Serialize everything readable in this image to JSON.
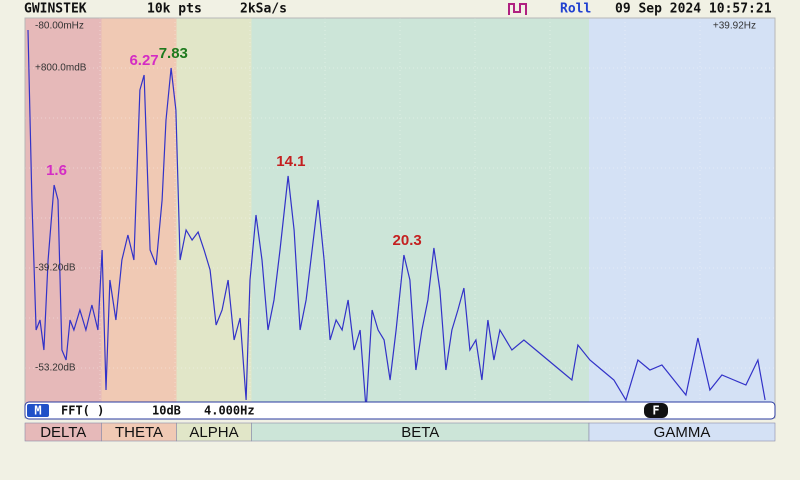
{
  "header": {
    "brand": "GWINSTEK",
    "points": "10k pts",
    "rate": "2kSa/s",
    "mode": "Roll",
    "datetime": "09 Sep 2024 10:57:21"
  },
  "scale": {
    "x_start": "-80.00mHz",
    "x_end": "+39.92Hz",
    "y_labels": [
      "+800.0mdB",
      "-39.20dB",
      "-53.20dB"
    ]
  },
  "xlim": [
    -0.08,
    39.92
  ],
  "ylim": [
    -69.2,
    10.8
  ],
  "bands": [
    {
      "label": "DELTA",
      "from": -0.08,
      "to": 4,
      "color": "#e6b9b9"
    },
    {
      "label": "THETA",
      "from": 4,
      "to": 8,
      "color": "#f0c9b4"
    },
    {
      "label": "ALPHA",
      "from": 8,
      "to": 12,
      "color": "#e1e6c8"
    },
    {
      "label": "BETA",
      "from": 12,
      "to": 30,
      "color": "#cce5d8"
    },
    {
      "label": "GAMMA",
      "from": 30,
      "to": 39.92,
      "color": "#d4e1f5"
    }
  ],
  "annotations": [
    {
      "value": 1.6,
      "color": "#d42cc4"
    },
    {
      "value": 6.27,
      "color": "#d42cc4"
    },
    {
      "value": 7.83,
      "color": "#1e7a1e"
    },
    {
      "value": 14.1,
      "color": "#c42020"
    },
    {
      "value": 20.3,
      "color": "#c42020"
    }
  ],
  "trace_color": "#3232c8",
  "trace": [
    [
      0.08,
      8.4
    ],
    [
      0.29,
      -25.6
    ],
    [
      0.51,
      -51.6
    ],
    [
      0.72,
      -49.6
    ],
    [
      0.93,
      -55.6
    ],
    [
      1.15,
      -37.6
    ],
    [
      1.47,
      -22.6
    ],
    [
      1.68,
      -25.6
    ],
    [
      1.89,
      -55.6
    ],
    [
      2.11,
      -57.6
    ],
    [
      2.32,
      -49.6
    ],
    [
      2.53,
      -51.6
    ],
    [
      2.85,
      -47.6
    ],
    [
      3.17,
      -51.6
    ],
    [
      3.49,
      -46.6
    ],
    [
      3.81,
      -51.6
    ],
    [
      4.03,
      -35.6
    ],
    [
      4.24,
      -63.6
    ],
    [
      4.45,
      -41.6
    ],
    [
      4.77,
      -49.6
    ],
    [
      5.09,
      -37.6
    ],
    [
      5.41,
      -32.6
    ],
    [
      5.73,
      -37.6
    ],
    [
      6.05,
      -3.6
    ],
    [
      6.27,
      -0.6
    ],
    [
      6.59,
      -35.6
    ],
    [
      6.91,
      -38.6
    ],
    [
      7.23,
      -25.6
    ],
    [
      7.44,
      -9.6
    ],
    [
      7.71,
      0.8
    ],
    [
      7.97,
      -7.6
    ],
    [
      8.19,
      -37.6
    ],
    [
      8.51,
      -31.6
    ],
    [
      8.83,
      -33.6
    ],
    [
      9.15,
      -32
    ],
    [
      9.47,
      -35.6
    ],
    [
      9.79,
      -39.6
    ],
    [
      10.11,
      -50.6
    ],
    [
      10.43,
      -47.6
    ],
    [
      10.75,
      -41.6
    ],
    [
      11.07,
      -53.6
    ],
    [
      11.39,
      -49.2
    ],
    [
      11.71,
      -65.6
    ],
    [
      11.92,
      -41.6
    ],
    [
      12.24,
      -28.6
    ],
    [
      12.56,
      -37.6
    ],
    [
      12.88,
      -51.6
    ],
    [
      13.2,
      -45.6
    ],
    [
      13.52,
      -35.6
    ],
    [
      13.95,
      -20.8
    ],
    [
      14.27,
      -31.6
    ],
    [
      14.59,
      -51.6
    ],
    [
      14.91,
      -45.6
    ],
    [
      15.23,
      -35.6
    ],
    [
      15.55,
      -25.6
    ],
    [
      15.87,
      -37.6
    ],
    [
      16.19,
      -53.6
    ],
    [
      16.51,
      -49.6
    ],
    [
      16.83,
      -51.6
    ],
    [
      17.15,
      -45.6
    ],
    [
      17.47,
      -55.6
    ],
    [
      17.79,
      -51.6
    ],
    [
      18.11,
      -67.6
    ],
    [
      18.43,
      -47.6
    ],
    [
      18.75,
      -51.6
    ],
    [
      19.07,
      -53.6
    ],
    [
      19.39,
      -61.6
    ],
    [
      19.71,
      -51.6
    ],
    [
      20.13,
      -36.6
    ],
    [
      20.45,
      -41.6
    ],
    [
      20.77,
      -59.6
    ],
    [
      21.09,
      -51.6
    ],
    [
      21.41,
      -45.6
    ],
    [
      21.73,
      -35.2
    ],
    [
      22.05,
      -43.6
    ],
    [
      22.37,
      -59.6
    ],
    [
      22.69,
      -51.6
    ],
    [
      23.01,
      -47.6
    ],
    [
      23.33,
      -43.2
    ],
    [
      23.65,
      -55.6
    ],
    [
      23.97,
      -53.6
    ],
    [
      24.29,
      -61.6
    ],
    [
      24.61,
      -49.6
    ],
    [
      24.93,
      -57.6
    ],
    [
      25.25,
      -51.6
    ],
    [
      25.89,
      -55.6
    ],
    [
      26.53,
      -53.6
    ],
    [
      27.17,
      -55.6
    ],
    [
      27.81,
      -57.6
    ],
    [
      28.45,
      -59.6
    ],
    [
      29.09,
      -61.6
    ],
    [
      29.41,
      -54.6
    ],
    [
      30.05,
      -57.6
    ],
    [
      30.69,
      -59.6
    ],
    [
      31.33,
      -61.6
    ],
    [
      31.97,
      -65.6
    ],
    [
      32.61,
      -57.6
    ],
    [
      33.25,
      -59.6
    ],
    [
      33.89,
      -58.6
    ],
    [
      34.53,
      -61.6
    ],
    [
      35.17,
      -64.6
    ],
    [
      35.81,
      -53.2
    ],
    [
      36.45,
      -63.6
    ],
    [
      37.09,
      -60.6
    ],
    [
      37.73,
      -61.6
    ],
    [
      38.37,
      -62.6
    ],
    [
      39.01,
      -57.6
    ],
    [
      39.39,
      -65.6
    ]
  ],
  "status": {
    "badge": "M",
    "source": "FFT(   )",
    "vscale": "10dB",
    "hscale": "4.000Hz",
    "fbadge": "F"
  }
}
